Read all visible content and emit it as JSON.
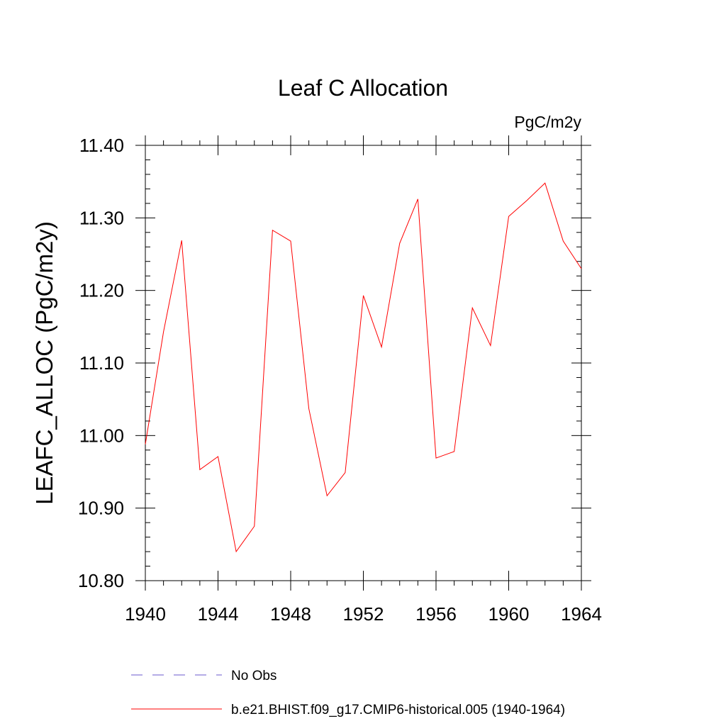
{
  "chart_data": {
    "type": "line",
    "title": "Leaf C Allocation",
    "units_label": "PgC/m2y",
    "ylabel": "LEAFC_ALLOC  (PgC/m2y)",
    "xlabel": "",
    "xlim": [
      1940,
      1964
    ],
    "ylim": [
      10.8,
      11.4
    ],
    "x_ticks": [
      1940,
      1944,
      1948,
      1952,
      1956,
      1960,
      1964
    ],
    "x_tick_labels": [
      "1940",
      "1944",
      "1948",
      "1952",
      "1956",
      "1960",
      "1964"
    ],
    "y_ticks": [
      10.8,
      10.9,
      11.0,
      11.1,
      11.2,
      11.3,
      11.4
    ],
    "y_tick_labels": [
      "10.80",
      "10.90",
      "11.00",
      "11.10",
      "11.20",
      "11.30",
      "11.40"
    ],
    "grid": false,
    "legend_position": "bottom",
    "series": [
      {
        "name": "b.e21.BHIST.f09_g17.CMIP6-historical.005 (1940-1964)",
        "color": "#ff0000",
        "style": "solid",
        "x": [
          1940,
          1941,
          1942,
          1943,
          1944,
          1945,
          1946,
          1947,
          1948,
          1949,
          1950,
          1951,
          1952,
          1953,
          1954,
          1955,
          1956,
          1957,
          1958,
          1959,
          1960,
          1961,
          1962,
          1963,
          1964
        ],
        "values": [
          10.988,
          11.143,
          11.269,
          10.953,
          10.971,
          10.84,
          10.875,
          11.283,
          11.268,
          11.037,
          10.917,
          10.949,
          11.193,
          11.122,
          11.265,
          11.326,
          10.969,
          10.978,
          11.176,
          11.124,
          11.302,
          11.324,
          11.348,
          11.268,
          11.23
        ]
      }
    ],
    "legend": [
      {
        "label": "No Obs",
        "color": "#6a5acd",
        "style": "dashed"
      },
      {
        "label": "b.e21.BHIST.f09_g17.CMIP6-historical.005 (1940-1964)",
        "color": "#ff0000",
        "style": "solid"
      }
    ]
  }
}
